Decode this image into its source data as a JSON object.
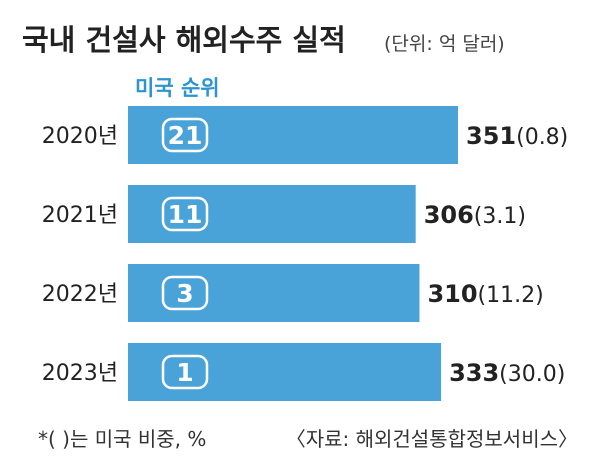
{
  "colors": {
    "bar": "#4aa3d8",
    "accent_text": "#2b95cf",
    "text": "#222222",
    "subtext": "#444444",
    "badge_border": "#ffffff"
  },
  "chart_data": {
    "type": "bar",
    "orientation": "horizontal",
    "title": "국내 건설사 해외수주 실적",
    "unit_note": "(단위: 억 달러)",
    "badge_header": "미국 순위",
    "categories": [
      "2020년",
      "2021년",
      "2022년",
      "2023년"
    ],
    "values": [
      351,
      306,
      310,
      333
    ],
    "us_share": [
      0.8,
      3.1,
      11.2,
      30.0
    ],
    "value_labels": [
      "351",
      "306",
      "310",
      "333"
    ],
    "share_labels": [
      "(0.8)",
      "(3.1)",
      "(11.2)",
      "(30.0)"
    ],
    "us_rank": [
      21,
      11,
      3,
      1
    ],
    "rank_labels": [
      "21",
      "11",
      "3",
      "1"
    ],
    "footnote": "*(  )는 미국 비중, %",
    "source": "〈자료: 해외건설통합정보서비스〉"
  }
}
